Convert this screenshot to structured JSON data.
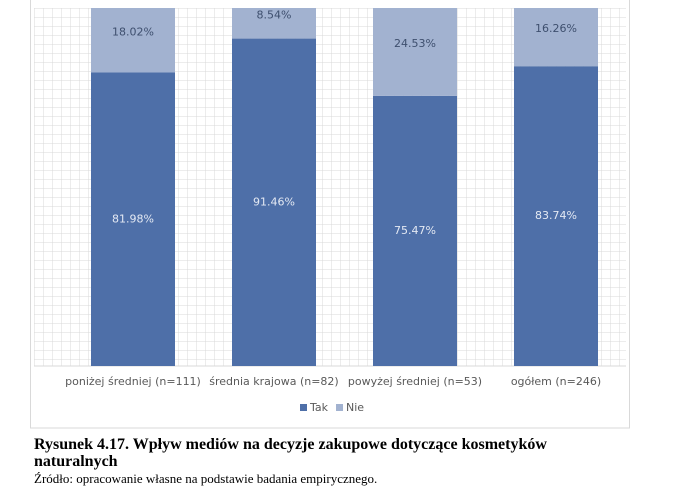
{
  "chart_data": {
    "type": "bar",
    "stacked": true,
    "categories": [
      "poniżej średniej (n=111)",
      "średnia krajowa (n=82)",
      "powyżej średniej (n=53)",
      "ogółem (n=246)"
    ],
    "series": [
      {
        "name": "Tak",
        "color": "#4e6fa8",
        "values": [
          81.98,
          91.46,
          75.47,
          83.74
        ],
        "value_labels": [
          "81.98%",
          "91.46%",
          "75.47%",
          "83.74%"
        ]
      },
      {
        "name": "Nie",
        "color": "#a2b2d0",
        "values": [
          18.02,
          8.54,
          24.53,
          16.26
        ],
        "value_labels": [
          "18.02%",
          "8.54%",
          "24.53%",
          "16.26%"
        ]
      }
    ],
    "ylim": [
      0,
      100
    ],
    "grid": true,
    "legend": "bottom"
  },
  "caption": {
    "title": "Rysunek 4.17. Wpływ mediów na decyzje zakupowe dotyczące kosmetyków naturalnych",
    "source": "Źródło: opracowanie własne na podstawie badania empirycznego."
  }
}
